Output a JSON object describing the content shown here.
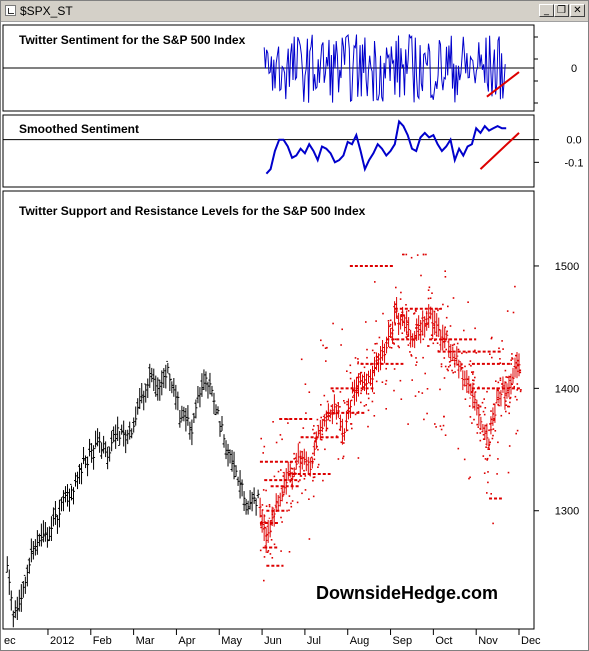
{
  "window": {
    "title": "$SPX_ST",
    "buttons": {
      "minimize": "_",
      "restore": "❐",
      "close": "✕"
    }
  },
  "colors": {
    "price": "#000000",
    "levels": "#dd0000",
    "sentiment": "#0000cc",
    "trend": "#dd0000",
    "zero_line": "#000000"
  },
  "chart_data": [
    {
      "type": "line",
      "title": "Twitter Sentiment for the S&P 500 Index",
      "ytick_labels": [
        "0"
      ],
      "ylim": [
        -1,
        1
      ],
      "zero_line": 0,
      "series_color": "#0000cc",
      "x_range_month_index": [
        5.05,
        10.7
      ],
      "trend_line": {
        "x": [
          10.25,
          11.0
        ],
        "y": [
          -0.7,
          -0.1
        ]
      }
    },
    {
      "type": "line",
      "title": "Smoothed Sentiment",
      "ytick_labels": [
        "0.0",
        "-0.1"
      ],
      "yticks": [
        0.0,
        -0.1
      ],
      "ylim": [
        -0.2,
        0.1
      ],
      "series_color": "#0000cc",
      "x": [
        5.1,
        5.2,
        5.3,
        5.4,
        5.5,
        5.6,
        5.7,
        5.8,
        5.9,
        6.0,
        6.1,
        6.2,
        6.3,
        6.4,
        6.5,
        6.6,
        6.7,
        6.8,
        6.9,
        7.0,
        7.1,
        7.2,
        7.3,
        7.4,
        7.5,
        7.6,
        7.7,
        7.8,
        7.9,
        8.0,
        8.1,
        8.2,
        8.3,
        8.4,
        8.5,
        8.6,
        8.7,
        8.8,
        8.9,
        9.0,
        9.1,
        9.2,
        9.3,
        9.4,
        9.5,
        9.6,
        9.7,
        9.8,
        9.9,
        10.0,
        10.1,
        10.2,
        10.3,
        10.4,
        10.5,
        10.6,
        10.7
      ],
      "y": [
        -0.15,
        -0.13,
        -0.05,
        0.0,
        0.0,
        -0.03,
        -0.08,
        -0.07,
        -0.04,
        -0.06,
        -0.02,
        -0.05,
        -0.09,
        -0.03,
        -0.04,
        -0.06,
        -0.1,
        -0.09,
        -0.07,
        -0.01,
        -0.02,
        0.02,
        -0.05,
        -0.13,
        -0.09,
        -0.06,
        -0.02,
        -0.04,
        -0.07,
        -0.05,
        -0.02,
        0.08,
        0.06,
        0.02,
        -0.04,
        -0.05,
        0.01,
        0.03,
        0.01,
        0.02,
        -0.02,
        -0.05,
        -0.03,
        0.0,
        -0.09,
        -0.04,
        -0.07,
        -0.03,
        -0.02,
        0.05,
        0.03,
        0.06,
        0.04,
        0.05,
        0.06,
        0.05,
        0.05
      ],
      "trend_line": {
        "x": [
          10.1,
          11.0
        ],
        "y": [
          -0.13,
          0.03
        ]
      }
    },
    {
      "type": "ohlc",
      "title": "Twitter Support and Resistance Levels for the S&P 500 Index",
      "ytick_labels": [
        "1500",
        "1400",
        "1300"
      ],
      "yticks": [
        1500,
        1400,
        1300
      ],
      "ylim": [
        1205,
        1540
      ],
      "x_labels": [
        "ec",
        "2012",
        "Feb",
        "Mar",
        "Apr",
        "May",
        "Jun",
        "Jul",
        "Aug",
        "Sep",
        "Oct",
        "Nov",
        "Dec"
      ],
      "x_label_positions": [
        -0.9,
        0,
        1,
        2,
        3,
        4,
        5,
        6,
        7,
        8,
        9,
        10,
        11
      ],
      "xlim": [
        -1.05,
        11.35
      ],
      "price_anchors": {
        "x": [
          -0.95,
          -0.8,
          -0.6,
          -0.4,
          -0.2,
          0.0,
          0.2,
          0.4,
          0.6,
          0.8,
          1.0,
          1.2,
          1.4,
          1.6,
          1.8,
          2.0,
          2.1,
          2.25,
          2.4,
          2.6,
          2.8,
          3.0,
          3.1,
          3.2,
          3.35,
          3.5,
          3.7,
          3.9,
          4.1,
          4.3,
          4.5,
          4.7,
          4.9,
          5.1,
          5.3,
          5.5,
          5.7,
          5.9,
          6.1,
          6.3,
          6.5,
          6.7,
          6.9,
          7.1,
          7.3,
          7.5,
          7.7,
          7.9,
          8.1,
          8.3,
          8.5,
          8.7,
          8.9,
          9.1,
          9.3,
          9.5,
          9.7,
          9.9,
          10.1,
          10.3,
          10.5,
          10.7,
          10.9,
          11.0
        ],
        "y": [
          1255,
          1215,
          1230,
          1265,
          1275,
          1280,
          1295,
          1310,
          1320,
          1335,
          1345,
          1355,
          1345,
          1365,
          1360,
          1370,
          1385,
          1395,
          1410,
          1400,
          1415,
          1395,
          1375,
          1380,
          1365,
          1395,
          1405,
          1390,
          1360,
          1340,
          1320,
          1305,
          1310,
          1278,
          1300,
          1320,
          1330,
          1345,
          1335,
          1360,
          1375,
          1385,
          1365,
          1395,
          1410,
          1405,
          1420,
          1430,
          1460,
          1455,
          1440,
          1450,
          1460,
          1445,
          1440,
          1425,
          1410,
          1395,
          1375,
          1355,
          1395,
          1400,
          1415,
          1418
        ]
      },
      "sr_levels": [
        {
          "x": [
            7.05,
            8.1
          ],
          "y": 1500
        },
        {
          "x": [
            8.1,
            9.2
          ],
          "y": 1465
        },
        {
          "x": [
            8.9,
            10.0
          ],
          "y": 1440
        },
        {
          "x": [
            7.9,
            8.6
          ],
          "y": 1440
        },
        {
          "x": [
            9.1,
            10.6
          ],
          "y": 1430
        },
        {
          "x": [
            7.3,
            8.3
          ],
          "y": 1420
        },
        {
          "x": [
            9.9,
            10.8
          ],
          "y": 1420
        },
        {
          "x": [
            6.6,
            7.6
          ],
          "y": 1400
        },
        {
          "x": [
            9.9,
            11.05
          ],
          "y": 1400
        },
        {
          "x": [
            6.5,
            7.4
          ],
          "y": 1380
        },
        {
          "x": [
            5.4,
            6.2
          ],
          "y": 1375
        },
        {
          "x": [
            5.9,
            6.8
          ],
          "y": 1360
        },
        {
          "x": [
            4.95,
            5.8
          ],
          "y": 1340
        },
        {
          "x": [
            5.6,
            6.6
          ],
          "y": 1330
        },
        {
          "x": [
            5.05,
            5.9
          ],
          "y": 1325
        },
        {
          "x": [
            5.2,
            5.9
          ],
          "y": 1320
        },
        {
          "x": [
            5.1,
            5.6
          ],
          "y": 1300
        },
        {
          "x": [
            4.95,
            5.4
          ],
          "y": 1290
        },
        {
          "x": [
            5.05,
            5.4
          ],
          "y": 1270
        },
        {
          "x": [
            5.1,
            5.5
          ],
          "y": 1255
        },
        {
          "x": [
            10.3,
            10.6
          ],
          "y": 1310
        }
      ],
      "sr_scatter_range": {
        "x": [
          4.95,
          11.05
        ],
        "y": [
          1210,
          1510
        ]
      }
    }
  ],
  "watermark": "DownsideHedge.com"
}
